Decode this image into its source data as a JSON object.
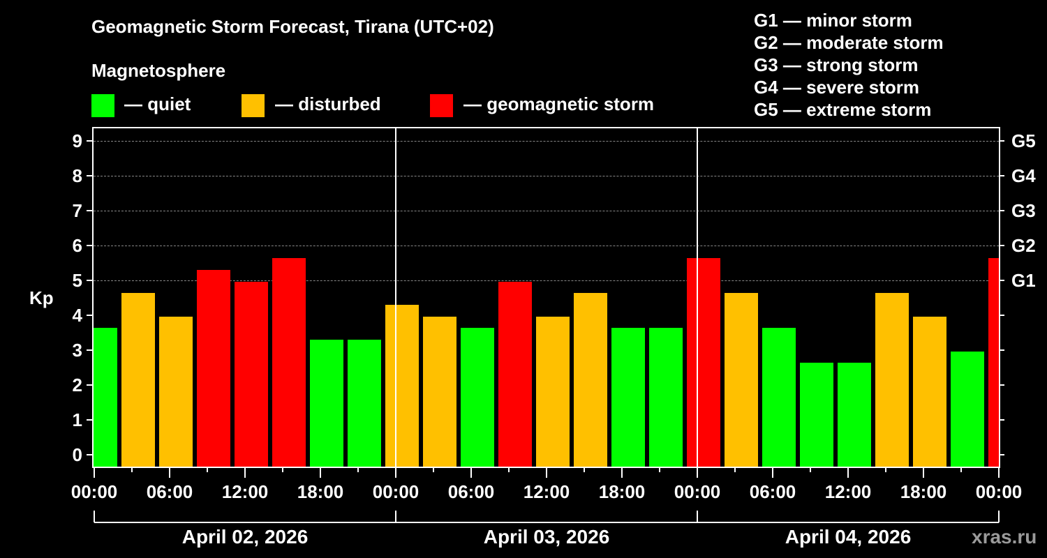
{
  "header": {
    "title": "Geomagnetic Storm Forecast, Tirana (UTC+02)",
    "subtitle": "Magnetosphere"
  },
  "legend": [
    {
      "label": "— quiet",
      "color": "#00ff00"
    },
    {
      "label": "— disturbed",
      "color": "#ffc000"
    },
    {
      "label": "— geomagnetic storm",
      "color": "#ff0000"
    }
  ],
  "g_legend": [
    "G1 — minor storm",
    "G2 — moderate storm",
    "G3 — strong storm",
    "G4 — severe storm",
    "G5 — extreme storm"
  ],
  "watermark": "xras.ru",
  "chart_data": {
    "type": "bar",
    "title": "Geomagnetic Storm Forecast, Tirana (UTC+02)",
    "xlabel": "",
    "ylabel": "Kp",
    "ylim": [
      0,
      9
    ],
    "yticks": [
      0,
      1,
      2,
      3,
      4,
      5,
      6,
      7,
      8,
      9
    ],
    "right_axis_labels": {
      "5": "G1",
      "6": "G2",
      "7": "G3",
      "8": "G4",
      "9": "G5"
    },
    "grid": "dashed horizontal at Kp 5-9",
    "x_tick_labels": [
      "00:00",
      "06:00",
      "12:00",
      "18:00",
      "00:00",
      "06:00",
      "12:00",
      "18:00",
      "00:00",
      "06:00",
      "12:00",
      "18:00",
      "00:00"
    ],
    "dates": [
      "April 02, 2026",
      "April 03, 2026",
      "April 04, 2026"
    ],
    "interval_hours": 3,
    "categories": [
      "Apr 02 00-03",
      "Apr 02 03-06",
      "Apr 02 06-09",
      "Apr 02 09-12",
      "Apr 02 12-15",
      "Apr 02 15-18",
      "Apr 02 18-21",
      "Apr 02 21-24",
      "Apr 03 00-03",
      "Apr 03 03-06",
      "Apr 03 06-09",
      "Apr 03 09-12",
      "Apr 03 12-15",
      "Apr 03 15-18",
      "Apr 03 18-21",
      "Apr 03 21-24",
      "Apr 04 00-03",
      "Apr 04 03-06",
      "Apr 04 06-09",
      "Apr 04 09-12",
      "Apr 04 12-15",
      "Apr 04 15-18",
      "Apr 04 18-21",
      "Apr 04 21-24",
      "Apr 05 00-03"
    ],
    "values": [
      3.67,
      4.67,
      4.0,
      5.33,
      5.0,
      5.67,
      3.33,
      3.33,
      4.33,
      4.0,
      3.67,
      5.0,
      4.0,
      4.67,
      3.67,
      3.67,
      5.67,
      4.67,
      3.67,
      2.67,
      2.67,
      4.67,
      4.0,
      3.0,
      5.67
    ],
    "levels": [
      "quiet",
      "disturbed",
      "disturbed",
      "storm",
      "storm",
      "storm",
      "quiet",
      "quiet",
      "disturbed",
      "disturbed",
      "quiet",
      "storm",
      "disturbed",
      "disturbed",
      "quiet",
      "quiet",
      "storm",
      "disturbed",
      "quiet",
      "quiet",
      "quiet",
      "disturbed",
      "disturbed",
      "quiet",
      "storm"
    ],
    "colors": {
      "quiet": "#00ff00",
      "disturbed": "#ffc000",
      "storm": "#ff0000"
    }
  }
}
